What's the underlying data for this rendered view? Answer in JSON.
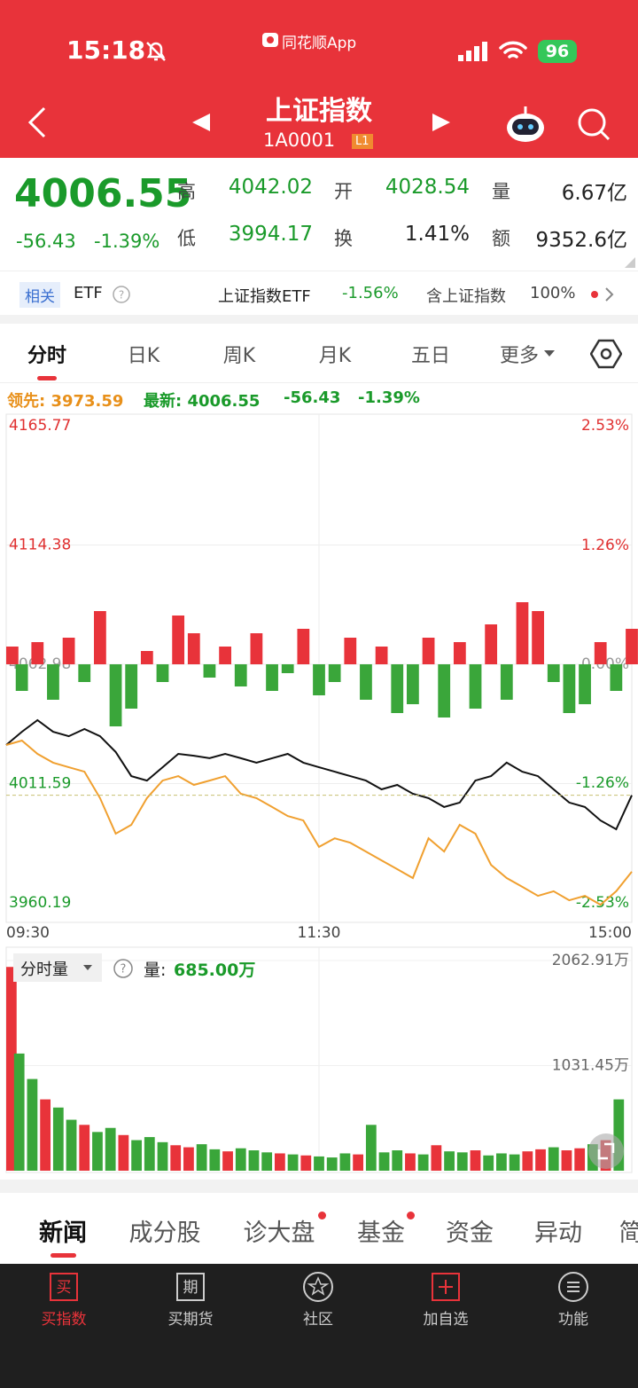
{
  "status_bar": {
    "time": "15:18",
    "app": "同花顺App",
    "battery": "96"
  },
  "header": {
    "title": "上证指数",
    "code": "1A0001",
    "level": "L1"
  },
  "quote": {
    "price": "4006.55",
    "change": "-56.43",
    "change_pct": "-1.39%",
    "stats": [
      {
        "label": "高",
        "value": "4042.02"
      },
      {
        "label": "开",
        "value": "4028.54"
      },
      {
        "label": "量",
        "value": "6.67亿"
      },
      {
        "label": "低",
        "value": "3994.17"
      },
      {
        "label": "换",
        "value": "1.41%"
      },
      {
        "label": "额",
        "value": "9352.6亿"
      }
    ]
  },
  "etf_row": {
    "tag": "相关",
    "label": "ETF",
    "name": "上证指数ETF",
    "change": "-1.56%",
    "holding_label": "含上证指数",
    "holding": "100%"
  },
  "chart_tabs": [
    "分时",
    "日K",
    "周K",
    "月K",
    "五日",
    "更多"
  ],
  "chart_legend": {
    "lead": "领先: 3973.59",
    "latest": "最新: 4006.55",
    "change": "-56.43",
    "change_pct": "-1.39%"
  },
  "chart_data": [
    {
      "type": "line",
      "x": [
        0,
        6,
        12,
        18,
        24,
        30,
        36,
        42,
        48,
        54,
        60,
        66,
        72,
        78,
        84,
        90,
        96,
        102,
        108,
        114,
        120,
        126,
        132,
        138,
        144,
        150,
        156,
        162,
        168,
        174,
        180,
        186,
        192,
        198,
        204,
        210,
        216,
        222,
        228,
        234,
        240
      ],
      "xlim": [
        0,
        240
      ],
      "xticks": [
        {
          "value": 0,
          "label": "09:30"
        },
        {
          "value": 120,
          "label": "11:30"
        },
        {
          "value": 240,
          "label": "15:00"
        }
      ],
      "ylim": [
        3960.19,
        4165.77
      ],
      "yticks": [
        4165.77,
        4114.38,
        4062.98,
        4011.59,
        3960.19
      ],
      "y2lim": [
        -2.53,
        2.53
      ],
      "y2ticks": [
        {
          "value": 2.53,
          "label": "2.53%"
        },
        {
          "value": 1.26,
          "label": "1.26%"
        },
        {
          "value": 0,
          "label": "0.00%"
        },
        {
          "value": -1.26,
          "label": "-1.26%"
        },
        {
          "value": -2.53,
          "label": "-2.53%"
        }
      ],
      "grid": true,
      "series": [
        {
          "color": "#111111",
          "values": [
            4028.2,
            4033.9,
            4038.9,
            4033.9,
            4032.0,
            4035.1,
            4032.0,
            4025.2,
            4014.8,
            4012.9,
            4018.6,
            4024.4,
            4023.6,
            4022.5,
            4024.4,
            4022.5,
            4020.6,
            4022.5,
            4024.4,
            4020.6,
            4018.6,
            4016.7,
            4014.8,
            4012.9,
            4009.1,
            4011.0,
            4007.2,
            4005.3,
            4001.5,
            4003.4,
            4012.9,
            4014.8,
            4020.6,
            4016.7,
            4014.8,
            4009.1,
            4003.4,
            4001.5,
            3995.7,
            3991.9,
            4006.55
          ]
        },
        {
          "color": "#f0a030",
          "values": [
            4028.2,
            4030.1,
            4024.4,
            4020.6,
            4018.6,
            4016.7,
            4005.3,
            3990.0,
            3993.8,
            4005.3,
            4012.9,
            4014.8,
            4011.0,
            4012.9,
            4014.8,
            4007.2,
            4005.3,
            4001.5,
            3997.6,
            3995.7,
            3984.3,
            3988.0,
            3986.1,
            3982.3,
            3978.5,
            3974.7,
            3970.9,
            3988.0,
            3982.3,
            3993.8,
            3990.0,
            3976.6,
            3970.9,
            3967.1,
            3963.2,
            3965.2,
            3961.3,
            3963.2,
            3959.4,
            3965.2,
            3973.59
          ]
        }
      ]
    },
    {
      "type": "bar",
      "x": [
        0,
        6,
        12,
        18,
        24,
        30,
        36,
        42,
        48,
        54,
        60,
        66,
        72,
        78,
        84,
        90,
        96,
        102,
        108,
        114,
        120,
        126,
        132,
        138,
        144,
        150,
        156,
        162,
        168,
        174,
        180,
        186,
        192,
        198,
        204,
        210,
        216,
        222,
        228,
        234,
        240
      ],
      "xlim": [
        0,
        240
      ],
      "ylim": [
        -100,
        100
      ],
      "values": [
        20,
        -30,
        25,
        -40,
        30,
        -20,
        60,
        -70,
        -50,
        15,
        -20,
        55,
        35,
        -15,
        20,
        -25,
        35,
        -30,
        -10,
        40,
        -35,
        -20,
        30,
        -40,
        20,
        -55,
        -45,
        30,
        -60,
        25,
        -50,
        45,
        -40,
        70,
        60,
        -20,
        -55,
        -45,
        25,
        -30,
        40
      ],
      "up_color": "#e8333a",
      "down_color": "#3aa63a"
    },
    {
      "type": "bar",
      "x": [
        0,
        5,
        10,
        15,
        20,
        25,
        30,
        35,
        40,
        45,
        50,
        55,
        60,
        65,
        70,
        75,
        80,
        85,
        90,
        95,
        100,
        105,
        110,
        115,
        120,
        125,
        130,
        135,
        140,
        145,
        150,
        155,
        160,
        165,
        170,
        175,
        180,
        185,
        190,
        195,
        200,
        205,
        210,
        215,
        220,
        225,
        230,
        235
      ],
      "xlim": [
        0,
        240
      ],
      "ylim": [
        0,
        2062.91
      ],
      "yticks": [
        {
          "value": 2062.91,
          "label": "2062.91万"
        },
        {
          "value": 1031.45,
          "label": "1031.45万"
        }
      ],
      "values": [
        2000,
        1150,
        900,
        700,
        620,
        500,
        450,
        380,
        420,
        350,
        300,
        330,
        280,
        250,
        230,
        260,
        210,
        190,
        220,
        200,
        180,
        170,
        160,
        150,
        140,
        130,
        170,
        160,
        450,
        180,
        200,
        170,
        160,
        250,
        190,
        180,
        200,
        150,
        170,
        160,
        190,
        210,
        230,
        200,
        220,
        260,
        300,
        700
      ],
      "colors": [
        "#e8333a",
        "#3aa63a",
        "#3aa63a",
        "#e8333a",
        "#3aa63a",
        "#3aa63a",
        "#e8333a",
        "#3aa63a",
        "#3aa63a",
        "#e8333a",
        "#3aa63a",
        "#3aa63a",
        "#3aa63a",
        "#e8333a",
        "#e8333a",
        "#3aa63a",
        "#3aa63a",
        "#e8333a",
        "#3aa63a",
        "#3aa63a",
        "#3aa63a",
        "#e8333a",
        "#3aa63a",
        "#e8333a",
        "#3aa63a",
        "#3aa63a",
        "#3aa63a",
        "#e8333a",
        "#3aa63a",
        "#3aa63a",
        "#3aa63a",
        "#e8333a",
        "#3aa63a",
        "#e8333a",
        "#3aa63a",
        "#3aa63a",
        "#e8333a",
        "#3aa63a",
        "#3aa63a",
        "#3aa63a",
        "#e8333a",
        "#e8333a",
        "#3aa63a",
        "#e8333a",
        "#e8333a",
        "#3aa63a",
        "#e8333a",
        "#3aa63a"
      ]
    }
  ],
  "volume_header": {
    "selector": "分时量",
    "label": "量:",
    "value": "685.00万"
  },
  "news_tabs": [
    "新闻",
    "成分股",
    "诊大盘",
    "基金",
    "资金",
    "异动",
    "简"
  ],
  "tab_bar": [
    "买指数",
    "买期货",
    "社区",
    "加自选",
    "功能"
  ]
}
